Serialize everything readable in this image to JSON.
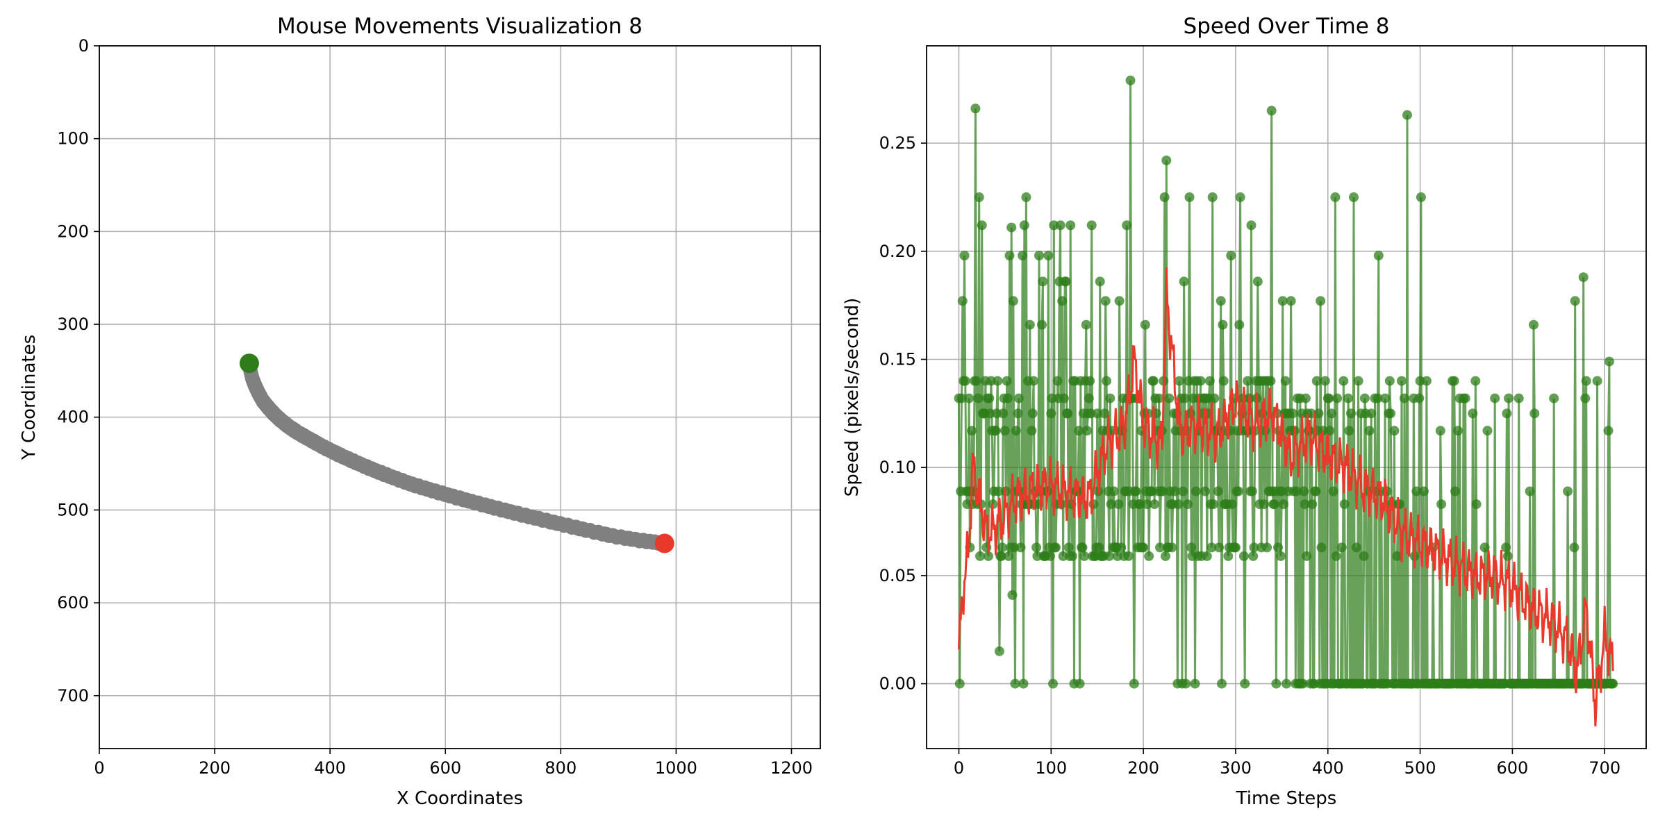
{
  "chart_data": [
    {
      "type": "scatter",
      "title": "Mouse Movements Visualization 8",
      "xlabel": "X Coordinates",
      "ylabel": "Y Coordinates",
      "xlim": [
        0,
        1250
      ],
      "ylim": [
        757,
        0
      ],
      "y_inverted": true,
      "grid": true,
      "x_ticks": [
        0,
        200,
        400,
        600,
        800,
        1000,
        1200
      ],
      "y_ticks": [
        0,
        100,
        200,
        300,
        400,
        500,
        600,
        700
      ],
      "path_color": "#808080",
      "start_color": "#2e7d1a",
      "end_color": "#e8392a",
      "start_point": {
        "x": 260,
        "y": 342
      },
      "end_point": {
        "x": 980,
        "y": 536
      },
      "series": [
        {
          "x": [
            260,
            262,
            265,
            270,
            276,
            283,
            292,
            302,
            314,
            328,
            345,
            365,
            388,
            414,
            442,
            472,
            505,
            540,
            577,
            616,
            657,
            700,
            745,
            792,
            840,
            890,
            940,
            980
          ],
          "y": [
            342,
            350,
            358,
            366,
            374,
            382,
            389,
            396,
            403,
            410,
            417,
            424,
            432,
            440,
            448,
            456,
            464,
            472,
            479,
            486,
            493,
            500,
            507,
            514,
            521,
            528,
            533,
            536
          ]
        }
      ]
    },
    {
      "type": "line",
      "title": "Speed Over Time 8",
      "xlabel": "Time Steps",
      "ylabel": "Speed (pixels/second)",
      "xlim": [
        -35,
        745
      ],
      "ylim": [
        -0.03,
        0.295
      ],
      "grid": true,
      "x_ticks": [
        0,
        100,
        200,
        300,
        400,
        500,
        600,
        700
      ],
      "y_ticks": [
        0.0,
        0.05,
        0.1,
        0.15,
        0.2,
        0.25
      ],
      "y_tick_labels": [
        "0.00",
        "0.05",
        "0.10",
        "0.15",
        "0.20",
        "0.25"
      ],
      "n_points": 710,
      "series": [
        {
          "kind": "raw",
          "color": "#2e7d1a",
          "marker": "o",
          "levels": [
            0.0,
            0.059,
            0.063,
            0.083,
            0.089,
            0.117,
            0.125,
            0.132,
            0.14,
            0.166,
            0.177,
            0.186,
            0.198,
            0.212,
            0.225
          ],
          "highlights": [
            {
              "x": 18,
              "y": 0.266
            },
            {
              "x": 186,
              "y": 0.279
            },
            {
              "x": 225,
              "y": 0.242
            },
            {
              "x": 339,
              "y": 0.265
            },
            {
              "x": 486,
              "y": 0.263
            },
            {
              "x": 677,
              "y": 0.188
            },
            {
              "x": 705,
              "y": 0.149
            },
            {
              "x": 57,
              "y": 0.211
            },
            {
              "x": 121,
              "y": 0.212
            },
            {
              "x": 250,
              "y": 0.225
            },
            {
              "x": 305,
              "y": 0.225
            },
            {
              "x": 408,
              "y": 0.225
            },
            {
              "x": 428,
              "y": 0.225
            },
            {
              "x": 501,
              "y": 0.225
            },
            {
              "x": 44,
              "y": 0.015
            },
            {
              "x": 58,
              "y": 0.041
            }
          ]
        },
        {
          "kind": "smoothed",
          "color": "#e8392a",
          "control_x": [
            0,
            5,
            10,
            15,
            20,
            30,
            40,
            60,
            80,
            100,
            120,
            140,
            160,
            180,
            190,
            200,
            220,
            225,
            240,
            260,
            280,
            300,
            320,
            340,
            360,
            380,
            400,
            420,
            440,
            460,
            480,
            500,
            520,
            540,
            560,
            580,
            600,
            620,
            640,
            660,
            670,
            680,
            690,
            700,
            708
          ],
          "control_y": [
            0.016,
            0.045,
            0.06,
            0.1,
            0.09,
            0.07,
            0.072,
            0.085,
            0.09,
            0.092,
            0.088,
            0.085,
            0.11,
            0.12,
            0.15,
            0.12,
            0.11,
            0.18,
            0.115,
            0.12,
            0.115,
            0.13,
            0.12,
            0.125,
            0.105,
            0.115,
            0.105,
            0.1,
            0.09,
            0.085,
            0.07,
            0.065,
            0.06,
            0.055,
            0.05,
            0.05,
            0.045,
            0.035,
            0.03,
            0.02,
            0.005,
            0.035,
            -0.01,
            0.022,
            0.01
          ]
        }
      ]
    }
  ]
}
